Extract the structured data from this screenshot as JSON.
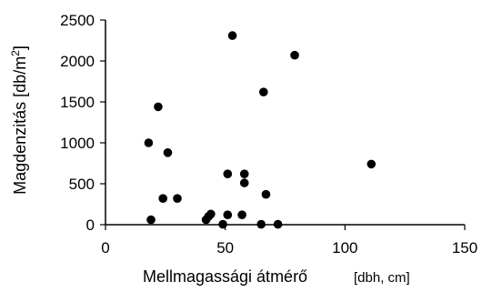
{
  "chart_data": {
    "type": "scatter",
    "xlabel": "Mellmagassági átmérő",
    "xunit": "[dbh, cm]",
    "ylabel_main": "Magdenzitás [db/m",
    "ylabel_sup": "2",
    "ylabel_end": "]",
    "xlim": [
      0,
      150
    ],
    "ylim": [
      0,
      2500
    ],
    "xticks": [
      0,
      50,
      100,
      150
    ],
    "yticks": [
      0,
      500,
      1000,
      1500,
      2000,
      2500
    ],
    "grid": false,
    "marker_color": "#000000",
    "points": [
      {
        "x": 18,
        "y": 1000
      },
      {
        "x": 19,
        "y": 60
      },
      {
        "x": 22,
        "y": 1440
      },
      {
        "x": 24,
        "y": 320
      },
      {
        "x": 26,
        "y": 880
      },
      {
        "x": 30,
        "y": 320
      },
      {
        "x": 42,
        "y": 60
      },
      {
        "x": 43,
        "y": 100
      },
      {
        "x": 44,
        "y": 130
      },
      {
        "x": 49,
        "y": 5
      },
      {
        "x": 51,
        "y": 620
      },
      {
        "x": 51,
        "y": 120
      },
      {
        "x": 53,
        "y": 2310
      },
      {
        "x": 57,
        "y": 120
      },
      {
        "x": 58,
        "y": 510
      },
      {
        "x": 58,
        "y": 620
      },
      {
        "x": 65,
        "y": 5
      },
      {
        "x": 66,
        "y": 1620
      },
      {
        "x": 67,
        "y": 370
      },
      {
        "x": 72,
        "y": 5
      },
      {
        "x": 79,
        "y": 2070
      },
      {
        "x": 111,
        "y": 740
      }
    ]
  }
}
